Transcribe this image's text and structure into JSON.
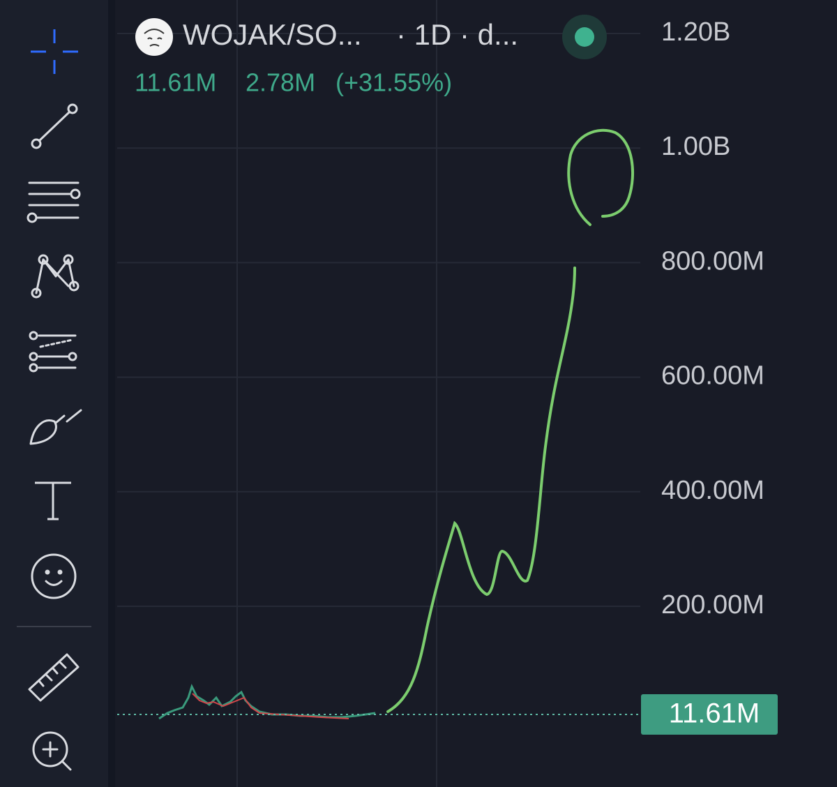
{
  "header": {
    "symbol": "WOJAK/SO...",
    "interval": "· 1D · d...",
    "last": "11.61M",
    "change": "2.78M",
    "change_pct": "(+31.55%)"
  },
  "price_axis": {
    "labels": [
      "1.20B",
      "1.00B",
      "800.00M",
      "600.00M",
      "400.00M",
      "200.00M"
    ],
    "last_price_tag": "11.61M"
  }
}
